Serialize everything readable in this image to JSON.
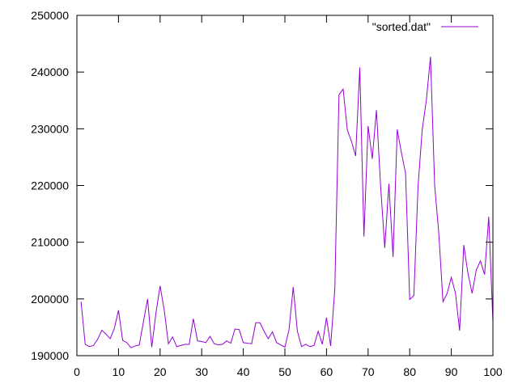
{
  "chart_data": {
    "type": "line",
    "xlim": [
      0,
      100
    ],
    "ylim": [
      190000,
      250000
    ],
    "xticks": [
      0,
      10,
      20,
      30,
      40,
      50,
      60,
      70,
      80,
      90,
      100
    ],
    "yticks": [
      190000,
      200000,
      210000,
      220000,
      230000,
      240000,
      250000
    ],
    "legend_position": "top-right",
    "grid": false,
    "series": [
      {
        "name": "\"sorted.dat\"",
        "color": "#9400d3",
        "x": [
          1,
          2,
          3,
          4,
          5,
          6,
          7,
          8,
          9,
          10,
          11,
          12,
          13,
          14,
          15,
          16,
          17,
          18,
          19,
          20,
          21,
          22,
          23,
          24,
          25,
          26,
          27,
          28,
          29,
          30,
          31,
          32,
          33,
          34,
          35,
          36,
          37,
          38,
          39,
          40,
          41,
          42,
          43,
          44,
          45,
          46,
          47,
          48,
          49,
          50,
          51,
          52,
          53,
          54,
          55,
          56,
          57,
          58,
          59,
          60,
          61,
          62,
          63,
          64,
          65,
          66,
          67,
          68,
          69,
          70,
          71,
          72,
          73,
          74,
          75,
          76,
          77,
          78,
          79,
          80,
          81,
          82,
          83,
          84,
          85,
          86,
          87,
          88,
          89,
          90,
          91,
          92,
          93,
          94,
          95,
          96,
          97,
          98,
          99,
          100
        ],
        "y": [
          199500,
          192000,
          191600,
          191800,
          192900,
          194500,
          193800,
          193000,
          194800,
          198000,
          192700,
          192300,
          191400,
          191700,
          191900,
          196000,
          200000,
          191500,
          197500,
          202300,
          198000,
          192100,
          193300,
          191600,
          191800,
          192000,
          192000,
          196500,
          192600,
          192500,
          192300,
          193400,
          192100,
          191900,
          192000,
          192600,
          192200,
          194700,
          194600,
          192300,
          192200,
          192100,
          195800,
          195800,
          194300,
          193000,
          194200,
          192300,
          191900,
          191500,
          194600,
          202100,
          194300,
          191600,
          192000,
          191600,
          191800,
          194300,
          192000,
          196700,
          191700,
          201800,
          236000,
          237000,
          229800,
          227800,
          225200,
          240800,
          211000,
          230500,
          224700,
          233300,
          220000,
          209000,
          220300,
          207400,
          229900,
          225800,
          222200,
          199900,
          200600,
          219800,
          229800,
          235000,
          242700,
          220000,
          211500,
          199500,
          201000,
          203800,
          201000,
          194400,
          209500,
          204500,
          201000,
          205100,
          206700,
          204300,
          214500,
          196000
        ]
      }
    ]
  }
}
